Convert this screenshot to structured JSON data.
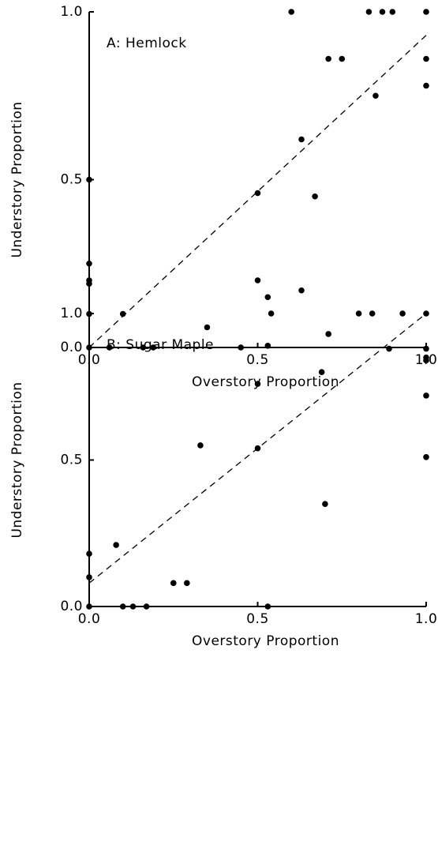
{
  "chart_data": [
    {
      "type": "scatter",
      "annotation": "A:  Hemlock",
      "xlabel": "Overstory  Proportion",
      "ylabel": "Understory  Proportion",
      "xlim": [
        0,
        1
      ],
      "ylim": [
        0,
        1
      ],
      "xticks": [
        {
          "value": 0,
          "label": "0.0"
        },
        {
          "value": 0.5,
          "label": "0.5"
        },
        {
          "value": 1,
          "label": "1.0"
        }
      ],
      "yticks": [
        {
          "value": 0,
          "label": "0.0"
        },
        {
          "value": 0.5,
          "label": "0.5"
        },
        {
          "value": 1,
          "label": "1.0"
        }
      ],
      "color": "#000000",
      "reference_line": {
        "x": [
          0,
          1
        ],
        "y": [
          0,
          0.93
        ]
      },
      "x": [
        0.6,
        0.83,
        0.87,
        0.9,
        1,
        0.71,
        0.75,
        1,
        1,
        0.85,
        0.63,
        0.5,
        0.67,
        0.5,
        0.63,
        0.53,
        0.35,
        0.1,
        0,
        0,
        0,
        0,
        0,
        0,
        0.06,
        0.16,
        0.19,
        0.45
      ],
      "y": [
        1,
        1,
        1,
        1,
        1,
        0.86,
        0.86,
        0.86,
        0.78,
        0.75,
        0.62,
        0.46,
        0.45,
        0.2,
        0.17,
        0.15,
        0.06,
        0.1,
        0.5,
        0.25,
        0.2,
        0.19,
        0.1,
        0,
        0,
        0,
        0,
        0
      ]
    },
    {
      "type": "scatter",
      "annotation": "B:  Sugar  Maple",
      "xlabel": "Overstory  Proportion",
      "ylabel": "Understory  Proportion",
      "xlim": [
        0,
        1
      ],
      "ylim": [
        0,
        1
      ],
      "xticks": [
        {
          "value": 0,
          "label": "0.0"
        },
        {
          "value": 0.5,
          "label": "0.5"
        },
        {
          "value": 1,
          "label": "1.0"
        }
      ],
      "yticks": [
        {
          "value": 0,
          "label": "0.0"
        },
        {
          "value": 0.5,
          "label": "0.5"
        },
        {
          "value": 1,
          "label": "1.0"
        }
      ],
      "color": "#000000",
      "reference_line": {
        "x": [
          0,
          1
        ],
        "y": [
          0.08,
          1
        ]
      },
      "x": [
        0.54,
        0.8,
        0.84,
        0.93,
        1,
        0.71,
        0.89,
        1,
        1,
        1,
        1,
        1,
        0.53,
        0.69,
        0.5,
        0.33,
        0.5,
        0.7,
        0,
        0,
        0.08,
        0.25,
        0.29,
        0,
        0.1,
        0.13,
        0.17,
        0.53
      ],
      "y": [
        1,
        1,
        1,
        1,
        1,
        0.93,
        0.88,
        0.88,
        0.85,
        0.84,
        0.72,
        0.51,
        0.89,
        0.8,
        0.76,
        0.55,
        0.54,
        0.35,
        0.18,
        0.1,
        0.21,
        0.08,
        0.08,
        0,
        0,
        0,
        0,
        0
      ]
    }
  ]
}
